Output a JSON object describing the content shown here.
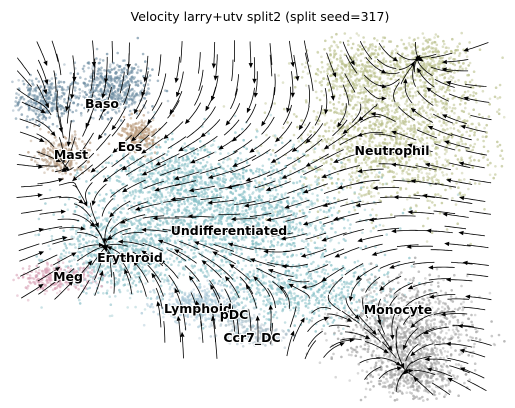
{
  "chart_data": {
    "type": "scatter",
    "title": "Velocity larry+utv split2 (split seed=317)",
    "xlabel": "",
    "ylabel": "",
    "grid": false,
    "axes_visible": false,
    "overlay": "velocity-streamlines",
    "cell_types": [
      {
        "name": "Baso",
        "color": "#6f8ea3"
      },
      {
        "name": "Mast",
        "color": "#b59a80"
      },
      {
        "name": "Eos",
        "color": "#b89878"
      },
      {
        "name": "Neutrophil",
        "color": "#b9bf8a"
      },
      {
        "name": "Undifferentiated",
        "color": "#86bfc6"
      },
      {
        "name": "Erythroid",
        "color": "#8fc2c9"
      },
      {
        "name": "Meg",
        "color": "#d9a3b7"
      },
      {
        "name": "Lymphoid",
        "color": "#a7c6d6"
      },
      {
        "name": "pDC",
        "color": "#b3c6cf"
      },
      {
        "name": "Ccr7_DC",
        "color": "#a9bcc7"
      },
      {
        "name": "Monocyte",
        "color": "#9e9e9e"
      }
    ]
  }
}
